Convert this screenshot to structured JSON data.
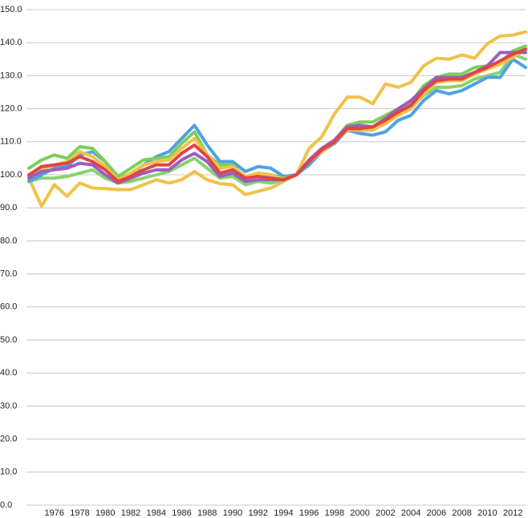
{
  "chart_data": {
    "type": "line",
    "x": [
      1974,
      1975,
      1976,
      1977,
      1978,
      1979,
      1980,
      1981,
      1982,
      1983,
      1984,
      1985,
      1986,
      1987,
      1988,
      1989,
      1990,
      1991,
      1992,
      1993,
      1994,
      1995,
      1996,
      1997,
      1998,
      1999,
      2000,
      2001,
      2002,
      2003,
      2004,
      2005,
      2006,
      2007,
      2008,
      2009,
      2010,
      2011,
      2012,
      2013
    ],
    "xlim": [
      1974,
      2013
    ],
    "xticks": [
      1976,
      1978,
      1980,
      1982,
      1984,
      1986,
      1988,
      1990,
      1992,
      1994,
      1996,
      1998,
      2000,
      2002,
      2004,
      2006,
      2008,
      2010,
      2012
    ],
    "ylim": [
      0,
      150
    ],
    "yticks": [
      {
        "value": 0,
        "label": "0.0"
      },
      {
        "value": 10,
        "label": "10.0"
      },
      {
        "value": 20,
        "label": "20.0"
      },
      {
        "value": 30,
        "label": "30.0"
      },
      {
        "value": 40,
        "label": "40.0"
      },
      {
        "value": 50,
        "label": "50.0"
      },
      {
        "value": 60,
        "label": "60.0"
      },
      {
        "value": 70,
        "label": "70.0"
      },
      {
        "value": 80,
        "label": "80.0"
      },
      {
        "value": 90,
        "label": "90.0"
      },
      {
        "value": 100,
        "label": "100.0"
      },
      {
        "value": 110,
        "label": "110.0"
      },
      {
        "value": 120,
        "label": "120.0"
      },
      {
        "value": 130,
        "label": "130.0"
      },
      {
        "value": 140,
        "label": "140.0"
      },
      {
        "value": 150,
        "label": "150.0"
      }
    ],
    "grid": true,
    "series": [
      {
        "color": "#f0c24a",
        "values": [
          99,
          90.5,
          97,
          93.5,
          97.5,
          96,
          95.8,
          95.5,
          95.5,
          97,
          98.5,
          97.5,
          98.5,
          101,
          98.5,
          97.3,
          97,
          94,
          95,
          96,
          98,
          100,
          108,
          111.5,
          118.5,
          123.5,
          123.5,
          121.5,
          127.5,
          126.5,
          128,
          133,
          135.3,
          135,
          136.3,
          135.3,
          139.7,
          142,
          142.3,
          143.3
        ]
      },
      {
        "color": "#86d36e",
        "values": [
          98,
          99,
          99,
          99.5,
          100.5,
          101.5,
          99,
          97.5,
          98,
          99,
          100,
          101,
          103,
          105,
          102,
          99,
          99.5,
          97,
          98,
          97.5,
          98.5,
          100,
          104,
          107,
          110.5,
          114.5,
          114,
          114,
          116,
          119,
          120.5,
          124,
          126.5,
          126.5,
          127,
          129,
          130,
          131,
          136.5,
          135
        ]
      },
      {
        "color": "#4ea1e6",
        "values": [
          98,
          100,
          102,
          102.5,
          106,
          107,
          104,
          99,
          100,
          103,
          105.5,
          107,
          111,
          115,
          109,
          104,
          104,
          101,
          102.5,
          102,
          99.5,
          100,
          103,
          107,
          109.5,
          113.5,
          112.5,
          112,
          113,
          116.5,
          118,
          122.5,
          125.5,
          124.5,
          125.5,
          127.5,
          129.5,
          129.5,
          135,
          132.5
        ]
      },
      {
        "color": "#7ccf5a",
        "values": [
          102,
          104.5,
          106,
          105,
          108.5,
          108,
          104,
          99.5,
          102,
          104.5,
          105,
          105.5,
          109.5,
          113,
          106,
          103,
          103,
          99,
          100.5,
          100,
          99,
          100,
          104,
          107.5,
          110.5,
          115,
          116,
          116,
          118,
          120,
          122,
          127,
          129.5,
          130.5,
          130.5,
          132.5,
          133,
          134,
          137.5,
          139
        ]
      },
      {
        "color": "#f0c24a",
        "values": [
          99.5,
          101.5,
          103,
          104,
          107,
          105.5,
          102.5,
          98.5,
          100.5,
          103,
          104,
          104.5,
          108,
          111,
          106,
          102,
          102.5,
          99.5,
          100.5,
          100,
          98.5,
          100,
          104,
          107,
          110,
          113.5,
          113.5,
          113.5,
          115.5,
          118,
          120,
          124.5,
          128,
          128.5,
          128.5,
          130.5,
          132,
          133.5,
          135.5,
          138
        ]
      },
      {
        "color": "#9b5fc0",
        "values": [
          99,
          101,
          101.5,
          102,
          103.5,
          103,
          100,
          97.5,
          99,
          100.5,
          101.5,
          101.5,
          104.5,
          106.5,
          104,
          99.5,
          100.5,
          98,
          98.5,
          98.5,
          98.5,
          100,
          104.5,
          108,
          110.5,
          114.5,
          115,
          114.5,
          117,
          120,
          122.5,
          126,
          129.5,
          129.5,
          129.5,
          131,
          133,
          137,
          137,
          137
        ]
      },
      {
        "color": "#e04444",
        "values": [
          100,
          102.5,
          103,
          103.5,
          105.5,
          104,
          101.5,
          98,
          99.5,
          101.5,
          103,
          103,
          106.5,
          109,
          105.5,
          100.5,
          101.5,
          99,
          99.5,
          99,
          98.5,
          100,
          104,
          107.5,
          110,
          114,
          114,
          114.5,
          116.5,
          119,
          121,
          125.5,
          128.5,
          129,
          129,
          131,
          132.5,
          134.5,
          136.5,
          138
        ]
      }
    ]
  }
}
